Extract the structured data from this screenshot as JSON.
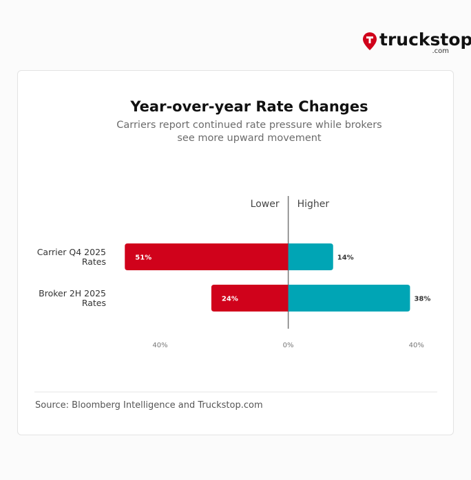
{
  "logo": {
    "name": "truckstop",
    "suffix": ".com"
  },
  "chart_data": {
    "type": "diverging_bar",
    "title": "Year-over-year Rate Changes",
    "subtitle": "Carriers report continued rate pressure while brokers see more upward movement",
    "categories": [
      "Carrier Q4 2025 Rates",
      "Broker 2H 2025 Rates"
    ],
    "series": [
      {
        "name": "Lower",
        "color": "#d0021b",
        "values": [
          51,
          24
        ],
        "value_labels": [
          "51%",
          "24%"
        ]
      },
      {
        "name": "Higher",
        "color": "#00a5b5",
        "values": [
          14,
          38
        ],
        "value_labels": [
          "14%",
          "38%"
        ]
      }
    ],
    "xlim": [
      -56,
      48
    ],
    "xticks": [
      {
        "value": -40,
        "label": "40%"
      },
      {
        "value": 0,
        "label": "0%"
      },
      {
        "value": 40,
        "label": "40%"
      }
    ],
    "source": "Source: Bloomberg Intelligence and Truckstop.com"
  }
}
